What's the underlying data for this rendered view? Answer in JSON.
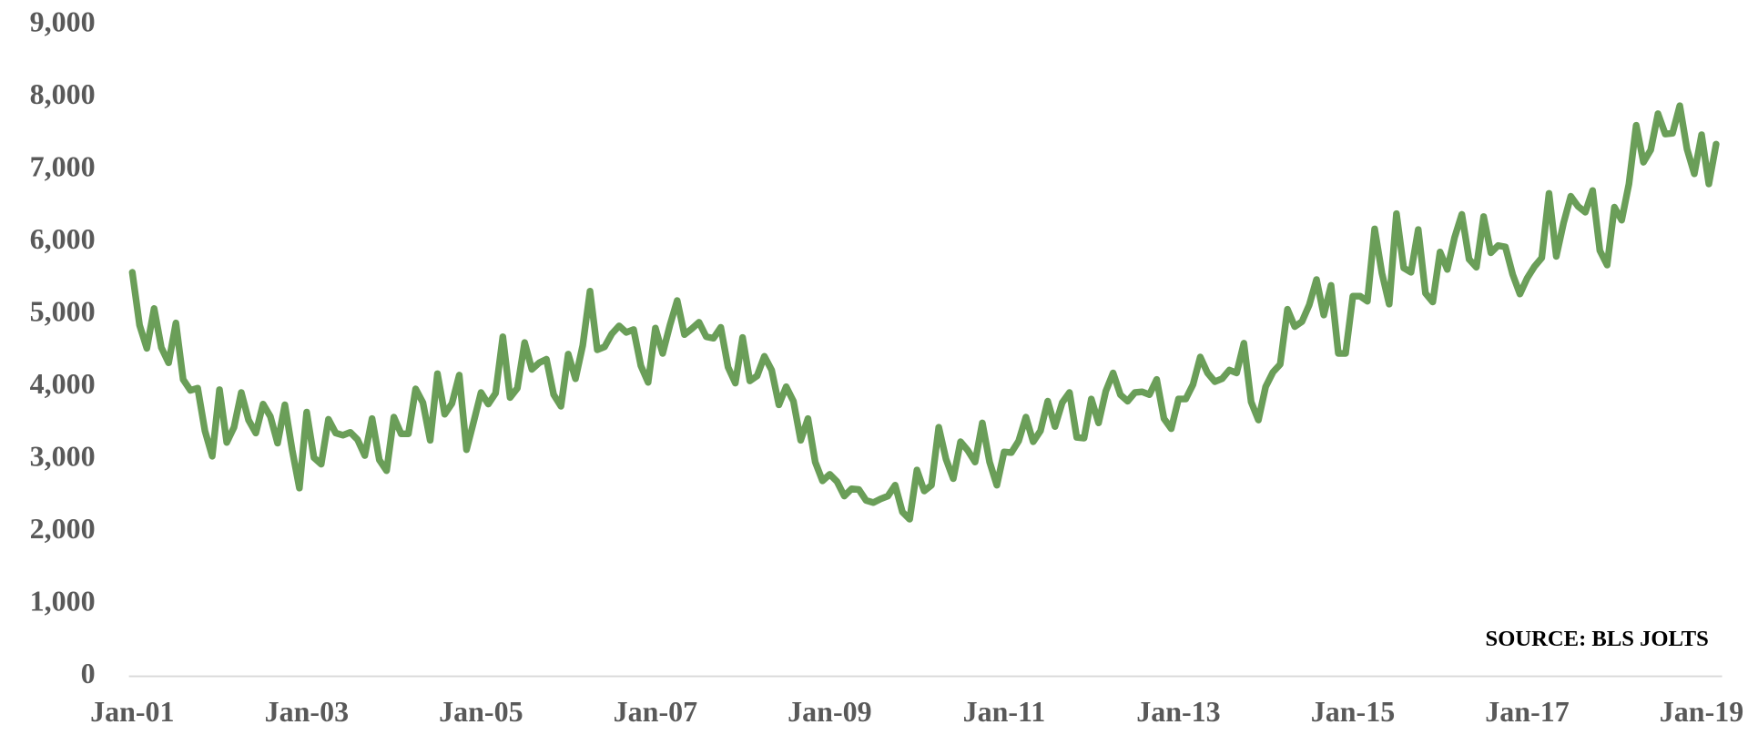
{
  "chart_data": {
    "type": "line",
    "categories": [
      "Jan-01",
      null,
      null,
      null,
      null,
      null,
      null,
      null,
      null,
      null,
      null,
      null,
      null,
      null,
      null,
      null,
      null,
      null,
      null,
      null,
      null,
      null,
      null,
      null,
      "Jan-03",
      null,
      null,
      null,
      null,
      null,
      null,
      null,
      null,
      null,
      null,
      null,
      null,
      null,
      null,
      null,
      null,
      null,
      null,
      null,
      null,
      null,
      null,
      null,
      "Jan-05",
      null,
      null,
      null,
      null,
      null,
      null,
      null,
      null,
      null,
      null,
      null,
      null,
      null,
      null,
      null,
      null,
      null,
      null,
      null,
      null,
      null,
      null,
      null,
      "Jan-07",
      null,
      null,
      null,
      null,
      null,
      null,
      null,
      null,
      null,
      null,
      null,
      null,
      null,
      null,
      null,
      null,
      null,
      null,
      null,
      null,
      null,
      null,
      null,
      "Jan-09",
      null,
      null,
      null,
      null,
      null,
      null,
      null,
      null,
      null,
      null,
      null,
      null,
      null,
      null,
      null,
      null,
      null,
      null,
      null,
      null,
      null,
      null,
      null,
      "Jan-11",
      null,
      null,
      null,
      null,
      null,
      null,
      null,
      null,
      null,
      null,
      null,
      null,
      null,
      null,
      null,
      null,
      null,
      null,
      null,
      null,
      null,
      null,
      null,
      "Jan-13",
      null,
      null,
      null,
      null,
      null,
      null,
      null,
      null,
      null,
      null,
      null,
      null,
      null,
      null,
      null,
      null,
      null,
      null,
      null,
      null,
      null,
      null,
      null,
      "Jan-15",
      null,
      null,
      null,
      null,
      null,
      null,
      null,
      null,
      null,
      null,
      null,
      null,
      null,
      null,
      null,
      null,
      null,
      null,
      null,
      null,
      null,
      null,
      null,
      "Jan-17",
      null,
      null,
      null,
      null,
      null,
      null,
      null,
      null,
      null,
      null,
      null,
      null,
      null,
      null,
      null,
      null,
      null,
      null,
      null,
      null,
      null,
      null,
      null,
      "Jan-19",
      null,
      null
    ],
    "values": [
      5580,
      4850,
      4530,
      5080,
      4540,
      4330,
      4880,
      4100,
      3950,
      3980,
      3390,
      3040,
      3960,
      3230,
      3440,
      3920,
      3540,
      3360,
      3760,
      3590,
      3220,
      3750,
      3130,
      2600,
      3650,
      3020,
      2930,
      3550,
      3360,
      3330,
      3370,
      3270,
      3050,
      3560,
      2990,
      2840,
      3580,
      3350,
      3350,
      3970,
      3780,
      3260,
      4180,
      3620,
      3770,
      4160,
      3130,
      3520,
      3920,
      3760,
      3910,
      4690,
      3850,
      3980,
      4610,
      4240,
      4330,
      4380,
      3890,
      3730,
      4450,
      4110,
      4570,
      5320,
      4510,
      4550,
      4730,
      4840,
      4750,
      4790,
      4290,
      4060,
      4810,
      4460,
      4850,
      5190,
      4720,
      4800,
      4890,
      4690,
      4670,
      4820,
      4270,
      4050,
      4680,
      4080,
      4150,
      4420,
      4230,
      3750,
      4000,
      3800,
      3260,
      3560,
      2960,
      2700,
      2790,
      2690,
      2490,
      2590,
      2580,
      2430,
      2400,
      2450,
      2490,
      2640,
      2270,
      2170,
      2850,
      2560,
      2640,
      3440,
      3000,
      2730,
      3240,
      3120,
      2960,
      3500,
      2960,
      2640,
      3100,
      3090,
      3250,
      3580,
      3240,
      3390,
      3800,
      3450,
      3780,
      3920,
      3300,
      3290,
      3830,
      3500,
      3940,
      4190,
      3890,
      3800,
      3920,
      3930,
      3890,
      4100,
      3560,
      3420,
      3830,
      3830,
      4030,
      4410,
      4190,
      4070,
      4110,
      4230,
      4190,
      4600,
      3790,
      3540,
      4000,
      4200,
      4310,
      5070,
      4830,
      4900,
      5130,
      5480,
      4990,
      5400,
      4460,
      4460,
      5250,
      5250,
      5180,
      6180,
      5570,
      5140,
      6390,
      5640,
      5580,
      6170,
      5290,
      5170,
      5860,
      5620,
      6060,
      6380,
      5760,
      5650,
      6350,
      5850,
      5950,
      5930,
      5550,
      5280,
      5500,
      5660,
      5780,
      6670,
      5800,
      6260,
      6630,
      6490,
      6410,
      6710,
      5880,
      5680,
      6480,
      6300,
      6800,
      7610,
      7100,
      7270,
      7770,
      7490,
      7500,
      7880,
      7280,
      6940,
      7480,
      6800,
      7350
    ],
    "color": "#6a9e58",
    "ylim": [
      0,
      9000
    ],
    "yticks": [
      0,
      {
        "value": 1000,
        "label": "1,000"
      },
      {
        "value": 2000,
        "label": "2,000"
      },
      {
        "value": 3000,
        "label": "3,000"
      },
      {
        "value": 4000,
        "label": "4,000"
      },
      {
        "value": 5000,
        "label": "5,000"
      },
      {
        "value": 6000,
        "label": "6,000"
      },
      {
        "value": 7000,
        "label": "7,000"
      },
      {
        "value": 8000,
        "label": "8,000"
      },
      {
        "value": 9000,
        "label": "9,000"
      }
    ],
    "grid": false,
    "annotation": "SOURCE: BLS JOLTS"
  }
}
